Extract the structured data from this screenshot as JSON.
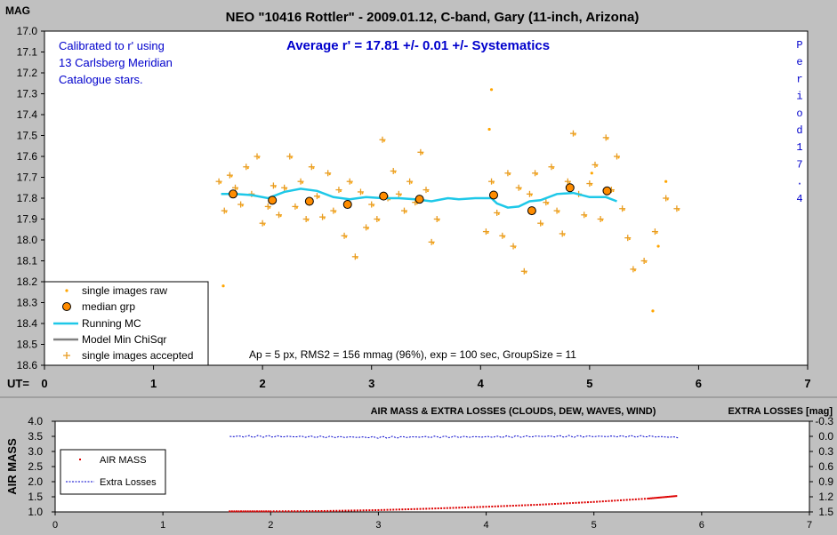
{
  "colors": {
    "background": "#c0c0c0",
    "plot_bg": "#ffffff",
    "raw_points": "#ffa500",
    "accepted_points": "#e89c20",
    "median_fill": "#ff8c00",
    "running_mc": "#1ec8e8",
    "model_line": "#808080",
    "title_blue": "#0000cc",
    "airmass": "#dd0000",
    "extra_losses": "#0000cc"
  },
  "chart_data": [
    {
      "type": "scatter",
      "title": "NEO \"10416 Rottler\" - 2009.01.12, C-band, Gary (11-inch, Arizona)",
      "ylabel": "MAG",
      "xlabel": "UT=",
      "xlim": [
        0,
        7
      ],
      "ylim": [
        17.0,
        18.6
      ],
      "y_inverted": true,
      "xticks": [
        "0",
        "1",
        "2",
        "3",
        "4",
        "5",
        "6",
        "7"
      ],
      "yticks": [
        "17.0",
        "17.1",
        "17.2",
        "17.3",
        "17.4",
        "17.5",
        "17.6",
        "17.7",
        "17.8",
        "17.9",
        "18.0",
        "18.1",
        "18.2",
        "18.3",
        "18.4",
        "18.5",
        "18.6"
      ],
      "grid": false,
      "legend_position": "bottom-left",
      "annotations": {
        "calibration": [
          "Calibrated to r' using",
          "13 Carlsberg Meridian",
          "Catalogue stars."
        ],
        "average": "Average r' = 17.81 +/- 0.01 +/- Systematics",
        "period": "Period 17.4",
        "stats": "Ap = 5 px, RMS2 = 156 mmag (96%), exp = 100 sec, GroupSize = 11"
      },
      "legend": [
        {
          "label": "single images raw",
          "marker": "dot"
        },
        {
          "label": "median grp",
          "marker": "circle"
        },
        {
          "label": "Running MC",
          "marker": "line-cyan"
        },
        {
          "label": "Model Min ChiSqr",
          "marker": "line-gray"
        },
        {
          "label": "single images accepted",
          "marker": "plus"
        }
      ],
      "series": [
        {
          "name": "median grp",
          "x": [
            1.73,
            2.09,
            2.43,
            2.78,
            3.11,
            3.44,
            4.12,
            4.47,
            4.82,
            5.16
          ],
          "y": [
            17.78,
            17.81,
            17.815,
            17.83,
            17.79,
            17.805,
            17.785,
            17.86,
            17.75,
            17.765
          ]
        },
        {
          "name": "Running MC",
          "x": [
            1.62,
            1.75,
            1.9,
            2.05,
            2.2,
            2.35,
            2.5,
            2.65,
            2.8,
            2.95,
            3.1,
            3.25,
            3.4,
            3.55,
            3.7,
            3.8,
            3.95,
            4.1,
            4.15,
            4.25,
            4.35,
            4.45,
            4.55,
            4.7,
            4.85,
            5.0,
            5.15,
            5.25
          ],
          "y": [
            17.78,
            17.78,
            17.785,
            17.8,
            17.77,
            17.755,
            17.765,
            17.795,
            17.805,
            17.795,
            17.8,
            17.8,
            17.805,
            17.815,
            17.8,
            17.805,
            17.8,
            17.8,
            17.825,
            17.845,
            17.84,
            17.815,
            17.81,
            17.78,
            17.775,
            17.795,
            17.795,
            17.815
          ]
        },
        {
          "name": "single images accepted",
          "x": [
            1.6,
            1.65,
            1.7,
            1.75,
            1.8,
            1.85,
            1.9,
            1.95,
            2.0,
            2.05,
            2.1,
            2.15,
            2.2,
            2.25,
            2.3,
            2.35,
            2.4,
            2.45,
            2.5,
            2.55,
            2.6,
            2.65,
            2.7,
            2.75,
            2.8,
            2.85,
            2.9,
            2.95,
            3.0,
            3.05,
            3.1,
            3.15,
            3.2,
            3.25,
            3.3,
            3.35,
            3.4,
            3.45,
            3.5,
            3.55,
            3.6,
            4.05,
            4.1,
            4.15,
            4.2,
            4.25,
            4.3,
            4.35,
            4.4,
            4.45,
            4.5,
            4.55,
            4.6,
            4.65,
            4.7,
            4.75,
            4.8,
            4.85,
            4.9,
            4.95,
            5.0,
            5.05,
            5.1,
            5.15,
            5.2,
            5.25,
            5.3,
            5.35,
            5.4,
            5.5,
            5.6,
            5.7,
            5.8
          ],
          "y": [
            17.72,
            17.86,
            17.69,
            17.75,
            17.83,
            17.65,
            17.78,
            17.6,
            17.92,
            17.84,
            17.74,
            17.88,
            17.75,
            17.6,
            17.84,
            17.72,
            17.9,
            17.65,
            17.79,
            17.89,
            17.68,
            17.86,
            17.76,
            17.98,
            17.72,
            18.08,
            17.77,
            17.94,
            17.83,
            17.9,
            17.52,
            17.8,
            17.67,
            17.78,
            17.86,
            17.72,
            17.82,
            17.58,
            17.76,
            18.01,
            17.9,
            17.96,
            17.72,
            17.87,
            17.98,
            17.68,
            18.03,
            17.75,
            18.15,
            17.78,
            17.68,
            17.92,
            17.82,
            17.65,
            17.86,
            17.97,
            17.72,
            17.49,
            17.78,
            17.88,
            17.73,
            17.64,
            17.9,
            17.51,
            17.76,
            17.6,
            17.85,
            17.99,
            18.14,
            18.1,
            17.96,
            17.8,
            17.85
          ]
        },
        {
          "name": "single images raw",
          "x": [
            1.64,
            4.1,
            4.08,
            5.02,
            5.58,
            5.63,
            5.7
          ],
          "y": [
            18.22,
            17.28,
            17.47,
            17.68,
            18.34,
            18.03,
            17.72
          ]
        }
      ]
    },
    {
      "type": "scatter",
      "title": "AIR MASS & EXTRA LOSSES (CLOUDS, DEW, WAVES, WIND)",
      "ylabel": "AIR MASS",
      "y2label": "EXTRA LOSSES [mag]",
      "xlim": [
        0,
        7
      ],
      "ylim": [
        1.0,
        4.0
      ],
      "y2lim": [
        -0.3,
        1.5
      ],
      "y2_inverted": true,
      "xticks": [
        "0",
        "1",
        "2",
        "3",
        "4",
        "5",
        "6",
        "7"
      ],
      "yticks": [
        "1.0",
        "1.5",
        "2.0",
        "2.5",
        "3.0",
        "3.5",
        "4.0"
      ],
      "y2ticks": [
        "-0.3",
        "0.0",
        "0.3",
        "0.6",
        "0.9",
        "1.2",
        "1.5"
      ],
      "legend_position": "top-left",
      "legend": [
        {
          "label": "AIR MASS"
        },
        {
          "label": "Extra Losses"
        }
      ],
      "series": [
        {
          "name": "AIR MASS",
          "x": [
            1.62,
            2.0,
            2.5,
            3.0,
            3.5,
            4.0,
            4.5,
            5.0,
            5.5,
            5.78
          ],
          "y": [
            1.02,
            1.02,
            1.03,
            1.06,
            1.11,
            1.17,
            1.24,
            1.33,
            1.44,
            1.53
          ]
        },
        {
          "name": "Extra Losses",
          "x": [
            1.62,
            2.0,
            2.5,
            3.0,
            3.5,
            4.0,
            4.5,
            5.0,
            5.5,
            5.78
          ],
          "y": [
            0.0,
            0.0,
            0.01,
            0.02,
            0.01,
            0.01,
            0.0,
            0.0,
            0.0,
            0.02
          ]
        }
      ]
    }
  ]
}
